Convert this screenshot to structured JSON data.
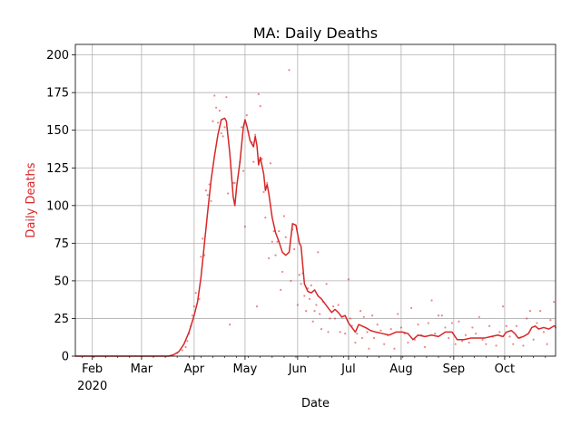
{
  "chart_data": {
    "type": "line",
    "title": "MA: Daily Deaths",
    "xlabel": "Date",
    "ylabel": "Daily Deaths",
    "ylabel_color": "#d62728",
    "line_color": "#d62728",
    "grid": true,
    "ylim": [
      0,
      207
    ],
    "xlim": [
      "2020-01-22",
      "2020-10-31"
    ],
    "yticks": [
      0,
      25,
      50,
      75,
      100,
      125,
      150,
      175,
      200
    ],
    "xticks": [
      {
        "date": "2020-02-01",
        "label": "Feb",
        "sublabel": "2020"
      },
      {
        "date": "2020-03-01",
        "label": "Mar",
        "sublabel": ""
      },
      {
        "date": "2020-04-01",
        "label": "Apr",
        "sublabel": ""
      },
      {
        "date": "2020-05-01",
        "label": "May",
        "sublabel": ""
      },
      {
        "date": "2020-06-01",
        "label": "Jun",
        "sublabel": ""
      },
      {
        "date": "2020-07-01",
        "label": "Jul",
        "sublabel": ""
      },
      {
        "date": "2020-08-01",
        "label": "Aug",
        "sublabel": ""
      },
      {
        "date": "2020-09-01",
        "label": "Sep",
        "sublabel": ""
      },
      {
        "date": "2020-10-01",
        "label": "Oct",
        "sublabel": ""
      }
    ],
    "series": [
      {
        "kind": "line",
        "points": [
          [
            "2020-01-22",
            0
          ],
          [
            "2020-03-15",
            0
          ],
          [
            "2020-03-17",
            0
          ],
          [
            "2020-03-20",
            1
          ],
          [
            "2020-03-23",
            3
          ],
          [
            "2020-03-26",
            8
          ],
          [
            "2020-03-29",
            16
          ],
          [
            "2020-04-01",
            27
          ],
          [
            "2020-04-03",
            36
          ],
          [
            "2020-04-05",
            52
          ],
          [
            "2020-04-07",
            74
          ],
          [
            "2020-04-09",
            96
          ],
          [
            "2020-04-11",
            117
          ],
          [
            "2020-04-13",
            133
          ],
          [
            "2020-04-15",
            147
          ],
          [
            "2020-04-17",
            157
          ],
          [
            "2020-04-19",
            158
          ],
          [
            "2020-04-20",
            156
          ],
          [
            "2020-04-22",
            135
          ],
          [
            "2020-04-24",
            106
          ],
          [
            "2020-04-25",
            100
          ],
          [
            "2020-04-26",
            112
          ],
          [
            "2020-04-28",
            129
          ],
          [
            "2020-04-30",
            152
          ],
          [
            "2020-05-01",
            157
          ],
          [
            "2020-05-02",
            153
          ],
          [
            "2020-05-04",
            143
          ],
          [
            "2020-05-05",
            141
          ],
          [
            "2020-05-06",
            139
          ],
          [
            "2020-05-07",
            146
          ],
          [
            "2020-05-08",
            140
          ],
          [
            "2020-05-09",
            127
          ],
          [
            "2020-05-10",
            132
          ],
          [
            "2020-05-12",
            121
          ],
          [
            "2020-05-13",
            110
          ],
          [
            "2020-05-14",
            114
          ],
          [
            "2020-05-15",
            108
          ],
          [
            "2020-05-17",
            92
          ],
          [
            "2020-05-19",
            82
          ],
          [
            "2020-05-21",
            76
          ],
          [
            "2020-05-23",
            69
          ],
          [
            "2020-05-25",
            67
          ],
          [
            "2020-05-27",
            69
          ],
          [
            "2020-05-29",
            88
          ],
          [
            "2020-05-31",
            87
          ],
          [
            "2020-06-02",
            75
          ],
          [
            "2020-06-03",
            73
          ],
          [
            "2020-06-05",
            48
          ],
          [
            "2020-06-07",
            43
          ],
          [
            "2020-06-09",
            42
          ],
          [
            "2020-06-11",
            44
          ],
          [
            "2020-06-13",
            40
          ],
          [
            "2020-06-15",
            38
          ],
          [
            "2020-06-17",
            35
          ],
          [
            "2020-06-19",
            32
          ],
          [
            "2020-06-21",
            29
          ],
          [
            "2020-06-23",
            31
          ],
          [
            "2020-06-25",
            29
          ],
          [
            "2020-06-27",
            26
          ],
          [
            "2020-06-29",
            27
          ],
          [
            "2020-07-01",
            22
          ],
          [
            "2020-07-03",
            19
          ],
          [
            "2020-07-05",
            16
          ],
          [
            "2020-07-07",
            21
          ],
          [
            "2020-07-09",
            20
          ],
          [
            "2020-07-11",
            19
          ],
          [
            "2020-07-14",
            17
          ],
          [
            "2020-07-17",
            16
          ],
          [
            "2020-07-21",
            15
          ],
          [
            "2020-07-25",
            14
          ],
          [
            "2020-07-29",
            16
          ],
          [
            "2020-08-02",
            16
          ],
          [
            "2020-08-05",
            15
          ],
          [
            "2020-08-08",
            11
          ],
          [
            "2020-08-11",
            14
          ],
          [
            "2020-08-15",
            13
          ],
          [
            "2020-08-19",
            14
          ],
          [
            "2020-08-23",
            13
          ],
          [
            "2020-08-27",
            16
          ],
          [
            "2020-08-31",
            16
          ],
          [
            "2020-09-03",
            11
          ],
          [
            "2020-09-07",
            11
          ],
          [
            "2020-09-11",
            12
          ],
          [
            "2020-09-15",
            12
          ],
          [
            "2020-09-19",
            12
          ],
          [
            "2020-09-23",
            13
          ],
          [
            "2020-09-27",
            14
          ],
          [
            "2020-09-30",
            13
          ],
          [
            "2020-10-02",
            16
          ],
          [
            "2020-10-05",
            17
          ],
          [
            "2020-10-07",
            15
          ],
          [
            "2020-10-09",
            12
          ],
          [
            "2020-10-12",
            13
          ],
          [
            "2020-10-15",
            15
          ],
          [
            "2020-10-17",
            19
          ],
          [
            "2020-10-19",
            20
          ],
          [
            "2020-10-21",
            18
          ],
          [
            "2020-10-24",
            19
          ],
          [
            "2020-10-27",
            18
          ],
          [
            "2020-10-30",
            20
          ],
          [
            "2020-10-31",
            20
          ]
        ]
      },
      {
        "kind": "scatter",
        "points": [
          [
            "2020-03-22",
            2
          ],
          [
            "2020-03-25",
            4
          ],
          [
            "2020-03-27",
            6
          ],
          [
            "2020-03-28",
            10
          ],
          [
            "2020-03-29",
            15
          ],
          [
            "2020-03-30",
            20
          ],
          [
            "2020-03-31",
            27
          ],
          [
            "2020-04-01",
            33
          ],
          [
            "2020-04-02",
            42
          ],
          [
            "2020-04-04",
            38
          ],
          [
            "2020-04-05",
            66
          ],
          [
            "2020-04-06",
            78
          ],
          [
            "2020-04-07",
            67
          ],
          [
            "2020-04-08",
            110
          ],
          [
            "2020-04-09",
            107
          ],
          [
            "2020-04-10",
            114
          ],
          [
            "2020-04-11",
            103
          ],
          [
            "2020-04-12",
            156
          ],
          [
            "2020-04-13",
            173
          ],
          [
            "2020-04-14",
            165
          ],
          [
            "2020-04-15",
            155
          ],
          [
            "2020-04-16",
            163
          ],
          [
            "2020-04-17",
            148
          ],
          [
            "2020-04-18",
            146
          ],
          [
            "2020-04-19",
            152
          ],
          [
            "2020-04-20",
            172
          ],
          [
            "2020-04-21",
            108
          ],
          [
            "2020-04-22",
            21
          ],
          [
            "2020-04-24",
            115
          ],
          [
            "2020-04-25",
            115
          ],
          [
            "2020-04-28",
            129
          ],
          [
            "2020-04-29",
            152
          ],
          [
            "2020-04-30",
            123
          ],
          [
            "2020-05-01",
            86
          ],
          [
            "2020-05-02",
            160
          ],
          [
            "2020-05-03",
            149
          ],
          [
            "2020-05-05",
            142
          ],
          [
            "2020-05-06",
            129
          ],
          [
            "2020-05-07",
            147
          ],
          [
            "2020-05-08",
            33
          ],
          [
            "2020-05-09",
            174
          ],
          [
            "2020-05-10",
            166
          ],
          [
            "2020-05-11",
            131
          ],
          [
            "2020-05-12",
            109
          ],
          [
            "2020-05-13",
            92
          ],
          [
            "2020-05-14",
            115
          ],
          [
            "2020-05-15",
            65
          ],
          [
            "2020-05-16",
            128
          ],
          [
            "2020-05-17",
            76
          ],
          [
            "2020-05-18",
            83
          ],
          [
            "2020-05-19",
            67
          ],
          [
            "2020-05-20",
            76
          ],
          [
            "2020-05-21",
            83
          ],
          [
            "2020-05-22",
            44
          ],
          [
            "2020-05-23",
            56
          ],
          [
            "2020-05-24",
            93
          ],
          [
            "2020-05-25",
            79
          ],
          [
            "2020-05-27",
            190
          ],
          [
            "2020-05-28",
            50
          ],
          [
            "2020-05-29",
            84
          ],
          [
            "2020-05-30",
            71
          ],
          [
            "2020-06-01",
            34
          ],
          [
            "2020-06-02",
            54
          ],
          [
            "2020-06-03",
            48
          ],
          [
            "2020-06-04",
            55
          ],
          [
            "2020-06-05",
            40
          ],
          [
            "2020-06-06",
            30
          ],
          [
            "2020-06-07",
            45
          ],
          [
            "2020-06-08",
            38
          ],
          [
            "2020-06-09",
            47
          ],
          [
            "2020-06-10",
            23
          ],
          [
            "2020-06-11",
            30
          ],
          [
            "2020-06-12",
            34
          ],
          [
            "2020-06-13",
            69
          ],
          [
            "2020-06-14",
            28
          ],
          [
            "2020-06-15",
            18
          ],
          [
            "2020-06-16",
            36
          ],
          [
            "2020-06-18",
            48
          ],
          [
            "2020-06-19",
            16
          ],
          [
            "2020-06-20",
            25
          ],
          [
            "2020-06-22",
            33
          ],
          [
            "2020-06-23",
            25
          ],
          [
            "2020-06-25",
            34
          ],
          [
            "2020-06-26",
            16
          ],
          [
            "2020-06-27",
            26
          ],
          [
            "2020-06-29",
            15
          ],
          [
            "2020-07-01",
            51
          ],
          [
            "2020-07-02",
            25
          ],
          [
            "2020-07-03",
            20
          ],
          [
            "2020-07-05",
            9
          ],
          [
            "2020-07-06",
            15
          ],
          [
            "2020-07-08",
            30
          ],
          [
            "2020-07-09",
            12
          ],
          [
            "2020-07-10",
            26
          ],
          [
            "2020-07-12",
            16
          ],
          [
            "2020-07-13",
            5
          ],
          [
            "2020-07-15",
            27
          ],
          [
            "2020-07-16",
            12
          ],
          [
            "2020-07-18",
            21
          ],
          [
            "2020-07-20",
            17
          ],
          [
            "2020-07-22",
            8
          ],
          [
            "2020-07-24",
            14
          ],
          [
            "2020-07-26",
            18
          ],
          [
            "2020-07-28",
            5
          ],
          [
            "2020-07-30",
            28
          ],
          [
            "2020-08-01",
            19
          ],
          [
            "2020-08-03",
            15
          ],
          [
            "2020-08-05",
            9
          ],
          [
            "2020-08-07",
            32
          ],
          [
            "2020-08-09",
            11
          ],
          [
            "2020-08-11",
            21
          ],
          [
            "2020-08-13",
            14
          ],
          [
            "2020-08-15",
            6
          ],
          [
            "2020-08-17",
            22
          ],
          [
            "2020-08-19",
            37
          ],
          [
            "2020-08-21",
            15
          ],
          [
            "2020-08-23",
            27
          ],
          [
            "2020-08-25",
            27
          ],
          [
            "2020-08-27",
            19
          ],
          [
            "2020-08-29",
            12
          ],
          [
            "2020-08-31",
            22
          ],
          [
            "2020-09-02",
            8
          ],
          [
            "2020-09-04",
            23
          ],
          [
            "2020-09-06",
            10
          ],
          [
            "2020-09-08",
            14
          ],
          [
            "2020-09-10",
            9
          ],
          [
            "2020-09-12",
            19
          ],
          [
            "2020-09-14",
            15
          ],
          [
            "2020-09-16",
            26
          ],
          [
            "2020-09-18",
            11
          ],
          [
            "2020-09-20",
            8
          ],
          [
            "2020-09-22",
            20
          ],
          [
            "2020-09-24",
            13
          ],
          [
            "2020-09-26",
            7
          ],
          [
            "2020-09-28",
            16
          ],
          [
            "2020-09-30",
            33
          ],
          [
            "2020-10-02",
            20
          ],
          [
            "2020-10-04",
            13
          ],
          [
            "2020-10-06",
            8
          ],
          [
            "2020-10-08",
            20
          ],
          [
            "2020-10-10",
            12
          ],
          [
            "2020-10-12",
            7
          ],
          [
            "2020-10-14",
            25
          ],
          [
            "2020-10-16",
            30
          ],
          [
            "2020-10-18",
            11
          ],
          [
            "2020-10-20",
            22
          ],
          [
            "2020-10-22",
            30
          ],
          [
            "2020-10-24",
            16
          ],
          [
            "2020-10-26",
            8
          ],
          [
            "2020-10-28",
            24
          ],
          [
            "2020-10-30",
            36
          ],
          [
            "2020-10-31",
            19
          ]
        ]
      }
    ]
  }
}
